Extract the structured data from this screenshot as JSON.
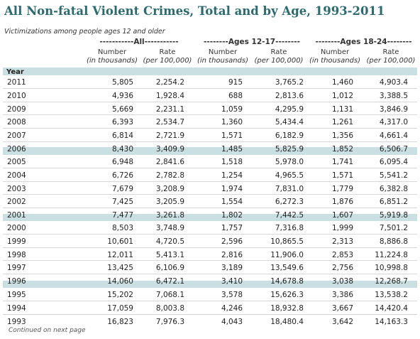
{
  "title": "All Non-fatal Violent Crimes, Total and by Age, 1993-2011",
  "subtitle": "Victimizations among people ages 12 and older",
  "groups": [
    "-----------All-----------",
    "--------Ages 12-17--------",
    "--------Ages 18-24--------"
  ],
  "columns": {
    "number": [
      "Number",
      "(in thousands)"
    ],
    "rate": [
      "Rate",
      "(per 100,000)"
    ]
  },
  "year_label": "Year",
  "footnote": "Continued on next page",
  "table_blocks": [
    [
      [
        "2011",
        "5,805",
        "2,254.2",
        "915",
        "3,765.2",
        "1,460",
        "4,903.4"
      ],
      [
        "2010",
        "4,936",
        "1,928.4",
        "688",
        "2,813.6",
        "1,012",
        "3,388.5"
      ],
      [
        "2009",
        "5,669",
        "2,231.1",
        "1,059",
        "4,295.9",
        "1,131",
        "3,846.9"
      ],
      [
        "2008",
        "6,393",
        "2,534.7",
        "1,360",
        "5,434.4",
        "1,261",
        "4,317.0"
      ],
      [
        "2007",
        "6,814",
        "2,721.9",
        "1,571",
        "6,182.9",
        "1,356",
        "4,661.4"
      ],
      [
        "2006",
        "8,430",
        "3,409.9",
        "1,485",
        "5,825.9",
        "1,852",
        "6,506.7"
      ]
    ],
    [
      [
        "2005",
        "6,948",
        "2,841.6",
        "1,518",
        "5,978.0",
        "1,741",
        "6,095.4"
      ],
      [
        "2004",
        "6,726",
        "2,782.8",
        "1,254",
        "4,965.5",
        "1,571",
        "5,541.2"
      ],
      [
        "2003",
        "7,679",
        "3,208.9",
        "1,974",
        "7,831.0",
        "1,779",
        "6,382.8"
      ],
      [
        "2002",
        "7,425",
        "3,205.9",
        "1,554",
        "6,272.3",
        "1,876",
        "6,851.2"
      ],
      [
        "2001",
        "7,477",
        "3,261.8",
        "1,802",
        "7,442.5",
        "1,607",
        "5,919.8"
      ]
    ],
    [
      [
        "2000",
        "8,503",
        "3,748.9",
        "1,757",
        "7,316.8",
        "1,999",
        "7,501.2"
      ],
      [
        "1999",
        "10,601",
        "4,720.5",
        "2,596",
        "10,865.5",
        "2,313",
        "8,886.8"
      ],
      [
        "1998",
        "12,011",
        "5,413.1",
        "2,816",
        "11,906.0",
        "2,853",
        "11,224.8"
      ],
      [
        "1997",
        "13,425",
        "6,106.9",
        "3,189",
        "13,549.6",
        "2,756",
        "10,998.8"
      ],
      [
        "1996",
        "14,060",
        "6,472.1",
        "3,410",
        "14,678.8",
        "3,038",
        "12,268.7"
      ]
    ],
    [
      [
        "1995",
        "15,202",
        "7,068.1",
        "3,578",
        "15,626.3",
        "3,386",
        "13,538.2"
      ],
      [
        "1994",
        "17,059",
        "8,003.8",
        "4,246",
        "18,932.8",
        "3,667",
        "14,420.4"
      ],
      [
        "1993",
        "16,823",
        "7,976.3",
        "4,043",
        "18,480.4",
        "3,642",
        "14,163.3"
      ]
    ]
  ]
}
